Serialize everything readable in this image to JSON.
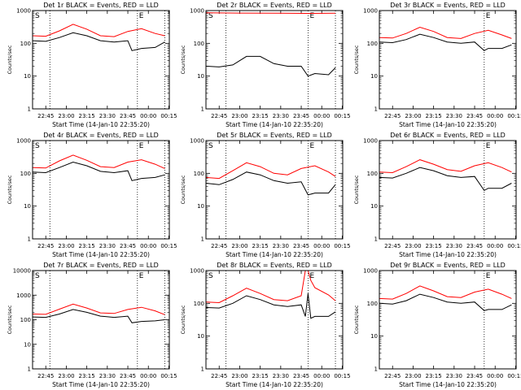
{
  "time_ticks": [
    "22:45",
    "23:00",
    "23:15",
    "23:30",
    "23:45",
    "00:00",
    "00:15"
  ],
  "y_ticks": [
    "1",
    "10",
    "100",
    "1000"
  ],
  "y_ticks_top": [
    "1",
    "10",
    "100",
    "1000",
    "10000"
  ],
  "colors": {
    "events": "#000000",
    "lld": "#ff0000",
    "axis": "#000000"
  },
  "chart_data": [
    {
      "type": "line",
      "title": "Det 1r BLACK = Events, RED = LLD",
      "xlabel": "Start Time (14-Jan-10 22:35:20)",
      "ylabel": "Counts/sec",
      "yscale": "log",
      "ylim": [
        1,
        1000
      ],
      "vlines": [
        "22:48",
        "23:52",
        "00:12"
      ],
      "markers": [
        "S",
        "E"
      ],
      "series": [
        {
          "x": [
            "22:35",
            "22:45",
            "22:55",
            "23:05",
            "23:15",
            "23:25",
            "23:35",
            "23:45",
            "23:48",
            "23:55",
            "00:05",
            "00:12"
          ],
          "values": [
            120,
            115,
            150,
            210,
            170,
            120,
            110,
            120,
            60,
            70,
            75,
            110
          ]
        },
        {
          "x": [
            "22:35",
            "22:45",
            "22:55",
            "23:05",
            "23:15",
            "23:25",
            "23:35",
            "23:45",
            "23:55",
            "00:05",
            "00:12"
          ],
          "values": [
            170,
            165,
            240,
            380,
            270,
            170,
            160,
            230,
            280,
            200,
            170
          ]
        }
      ]
    },
    {
      "type": "line",
      "title": "Det 2r BLACK = Events, RED = LLD",
      "xlabel": "Start Time (14-Jan-10 22:35:20)",
      "ylabel": "Counts/sec",
      "yscale": "log",
      "ylim": [
        1,
        1000
      ],
      "vlines": [
        "22:50",
        "23:50",
        "00:10"
      ],
      "markers": [
        "S",
        "E"
      ],
      "series": [
        {
          "x": [
            "22:35",
            "22:45",
            "22:55",
            "23:05",
            "23:15",
            "23:25",
            "23:35",
            "23:45",
            "23:50",
            "23:55",
            "00:05",
            "00:10"
          ],
          "values": [
            20,
            19,
            22,
            40,
            40,
            24,
            20,
            20,
            10,
            12,
            11,
            18
          ]
        },
        {
          "x": [
            "22:35",
            "23:00",
            "23:30",
            "23:50",
            "00:10"
          ],
          "values": [
            850,
            840,
            830,
            820,
            830
          ]
        }
      ]
    },
    {
      "type": "line",
      "title": "Det 3r BLACK = Events, RED = LLD",
      "xlabel": "Start Time (14-Jan-10 22:35:20)",
      "ylabel": "Counts/sec",
      "yscale": "log",
      "ylim": [
        1,
        1000
      ],
      "vlines": [
        "23:52"
      ],
      "markers": [
        "E"
      ],
      "series": [
        {
          "x": [
            "22:35",
            "22:45",
            "22:55",
            "23:05",
            "23:15",
            "23:25",
            "23:35",
            "23:45",
            "23:52",
            "23:55",
            "00:05",
            "00:12"
          ],
          "values": [
            110,
            105,
            130,
            190,
            150,
            110,
            100,
            110,
            60,
            70,
            70,
            90
          ]
        },
        {
          "x": [
            "22:35",
            "22:45",
            "22:55",
            "23:05",
            "23:15",
            "23:25",
            "23:35",
            "23:45",
            "23:55",
            "00:05",
            "00:12"
          ],
          "values": [
            150,
            145,
            200,
            310,
            230,
            150,
            140,
            200,
            250,
            180,
            140
          ]
        }
      ]
    },
    {
      "type": "line",
      "title": "Det 4r BLACK = Events, RED = LLD",
      "xlabel": "Start Time (14-Jan-10 22:35:20)",
      "ylabel": "Counts/sec",
      "yscale": "log",
      "ylim": [
        1,
        1000
      ],
      "vlines": [
        "22:48",
        "23:52",
        "00:12"
      ],
      "markers": [
        "S",
        "E"
      ],
      "series": [
        {
          "x": [
            "22:35",
            "22:45",
            "22:55",
            "23:05",
            "23:15",
            "23:25",
            "23:35",
            "23:45",
            "23:48",
            "23:55",
            "00:05",
            "00:12"
          ],
          "values": [
            110,
            105,
            150,
            220,
            170,
            115,
            105,
            120,
            60,
            70,
            75,
            90
          ]
        },
        {
          "x": [
            "22:35",
            "22:45",
            "22:55",
            "23:05",
            "23:15",
            "23:25",
            "23:35",
            "23:45",
            "23:55",
            "00:05",
            "00:12"
          ],
          "values": [
            150,
            145,
            240,
            360,
            250,
            160,
            150,
            220,
            260,
            190,
            140
          ]
        }
      ]
    },
    {
      "type": "line",
      "title": "Det 5r BLACK = Events, RED = LLD",
      "xlabel": "Start Time (14-Jan-10 22:35:20)",
      "ylabel": "Counts/sec",
      "yscale": "log",
      "ylim": [
        1,
        1000
      ],
      "vlines": [
        "22:50",
        "23:50",
        "00:10"
      ],
      "markers": [
        "S",
        "E"
      ],
      "series": [
        {
          "x": [
            "22:35",
            "22:45",
            "22:55",
            "23:05",
            "23:15",
            "23:25",
            "23:35",
            "23:45",
            "23:50",
            "23:55",
            "00:05",
            "00:10"
          ],
          "values": [
            50,
            45,
            65,
            110,
            90,
            60,
            50,
            55,
            22,
            25,
            25,
            45
          ]
        },
        {
          "x": [
            "22:35",
            "22:45",
            "22:55",
            "23:05",
            "23:15",
            "23:25",
            "23:35",
            "23:45",
            "23:55",
            "00:05",
            "00:10"
          ],
          "values": [
            75,
            70,
            120,
            210,
            160,
            100,
            90,
            140,
            170,
            110,
            80
          ]
        }
      ]
    },
    {
      "type": "line",
      "title": "Det 6r BLACK = Events, RED = LLD",
      "xlabel": "Start Time (14-Jan-10 22:35:20)",
      "ylabel": "Counts/sec",
      "yscale": "log",
      "ylim": [
        1,
        1000
      ],
      "vlines": [
        "23:52"
      ],
      "markers": [
        "E"
      ],
      "series": [
        {
          "x": [
            "22:35",
            "22:45",
            "22:55",
            "23:05",
            "23:15",
            "23:25",
            "23:35",
            "23:45",
            "23:52",
            "23:55",
            "00:05",
            "00:12"
          ],
          "values": [
            75,
            72,
            100,
            150,
            120,
            85,
            75,
            80,
            30,
            35,
            35,
            50
          ]
        },
        {
          "x": [
            "22:35",
            "22:45",
            "22:55",
            "23:05",
            "23:15",
            "23:25",
            "23:35",
            "23:45",
            "23:55",
            "00:05",
            "00:12"
          ],
          "values": [
            110,
            105,
            160,
            260,
            190,
            130,
            115,
            170,
            210,
            150,
            110
          ]
        }
      ]
    },
    {
      "type": "line",
      "title": "Det 7r BLACK = Events, RED = LLD",
      "xlabel": "Start Time (14-Jan-10 22:35:20)",
      "ylabel": "Counts/sec",
      "yscale": "log",
      "ylim": [
        1,
        10000
      ],
      "vlines": [
        "22:48",
        "23:52",
        "00:12"
      ],
      "markers": [
        "S",
        "E"
      ],
      "series": [
        {
          "x": [
            "22:35",
            "22:45",
            "22:55",
            "23:05",
            "23:15",
            "23:25",
            "23:35",
            "23:45",
            "23:48",
            "23:55",
            "00:05",
            "00:12"
          ],
          "values": [
            130,
            125,
            170,
            260,
            200,
            140,
            125,
            140,
            75,
            85,
            90,
            100
          ]
        },
        {
          "x": [
            "22:35",
            "22:45",
            "22:55",
            "23:05",
            "23:15",
            "23:25",
            "23:35",
            "23:45",
            "23:55",
            "00:05",
            "00:12"
          ],
          "values": [
            170,
            165,
            270,
            430,
            300,
            190,
            180,
            260,
            320,
            230,
            160
          ]
        }
      ]
    },
    {
      "type": "line",
      "title": "Det 8r BLACK = Events, RED = LLD",
      "xlabel": "Start Time (14-Jan-10 22:35:20)",
      "ylabel": "Counts/sec",
      "yscale": "log",
      "ylim": [
        1,
        1000
      ],
      "vlines": [
        "22:50",
        "23:50",
        "00:10"
      ],
      "markers": [
        "S",
        "E"
      ],
      "series": [
        {
          "x": [
            "22:35",
            "22:45",
            "22:55",
            "23:05",
            "23:15",
            "23:25",
            "23:35",
            "23:45",
            "23:48",
            "23:50",
            "23:52",
            "23:55",
            "00:05",
            "00:10"
          ],
          "values": [
            75,
            72,
            100,
            170,
            130,
            90,
            80,
            90,
            40,
            200,
            35,
            40,
            40,
            55
          ]
        },
        {
          "x": [
            "22:35",
            "22:45",
            "22:55",
            "23:05",
            "23:15",
            "23:25",
            "23:35",
            "23:45",
            "23:48",
            "23:50",
            "23:52",
            "23:55",
            "00:05",
            "00:10"
          ],
          "values": [
            110,
            105,
            170,
            290,
            200,
            130,
            120,
            170,
            1000,
            1000,
            500,
            300,
            180,
            120
          ]
        }
      ]
    },
    {
      "type": "line",
      "title": "Det 9r BLACK = Events, RED = LLD",
      "xlabel": "Start Time (14-Jan-10 22:35:20)",
      "ylabel": "Counts/sec",
      "yscale": "log",
      "ylim": [
        1,
        1000
      ],
      "vlines": [
        "23:52"
      ],
      "markers": [
        "E"
      ],
      "series": [
        {
          "x": [
            "22:35",
            "22:45",
            "22:55",
            "23:05",
            "23:15",
            "23:25",
            "23:35",
            "23:45",
            "23:52",
            "23:55",
            "00:05",
            "00:12"
          ],
          "values": [
            100,
            95,
            120,
            190,
            150,
            110,
            100,
            110,
            60,
            65,
            65,
            90
          ]
        },
        {
          "x": [
            "22:35",
            "22:45",
            "22:55",
            "23:05",
            "23:15",
            "23:25",
            "23:35",
            "23:45",
            "23:55",
            "00:05",
            "00:12"
          ],
          "values": [
            140,
            135,
            200,
            340,
            240,
            160,
            150,
            220,
            270,
            190,
            140
          ]
        }
      ]
    }
  ]
}
